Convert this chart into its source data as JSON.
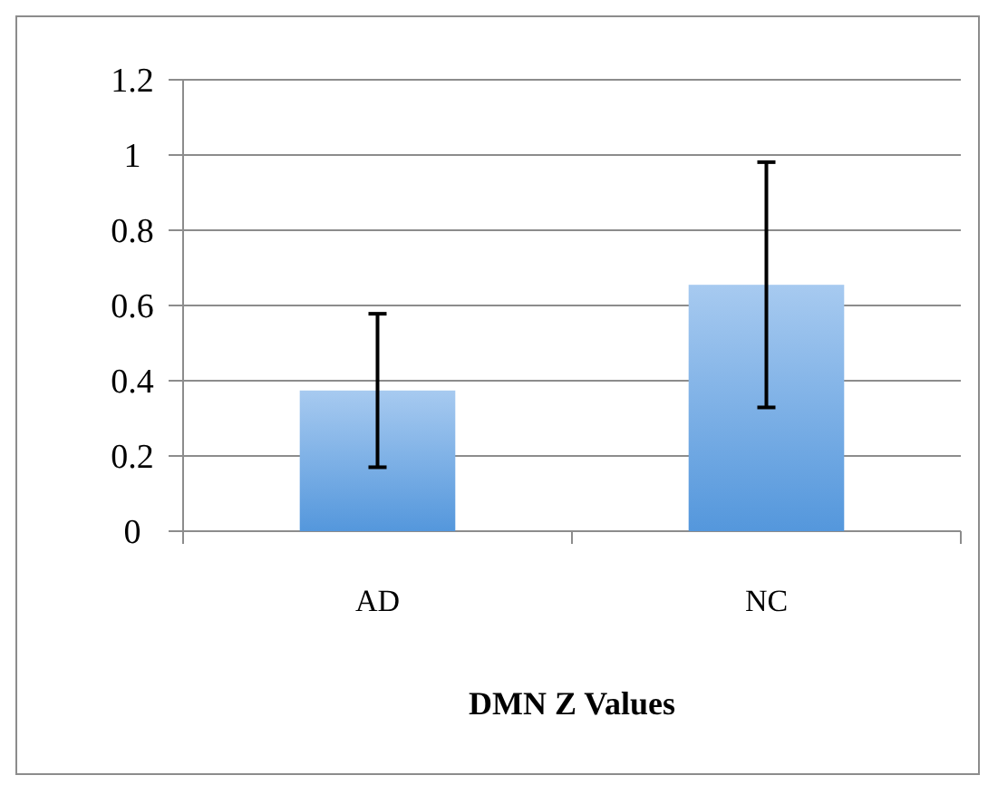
{
  "chart_data": {
    "type": "bar",
    "xlabel": "DMN Z Values",
    "categories": [
      "AD",
      "NC"
    ],
    "values": [
      0.374,
      0.655
    ],
    "errors": [
      0.204,
      0.326
    ],
    "color": "#78aee8",
    "ylim": [
      0,
      1.2
    ],
    "yticks": [
      0,
      0.2,
      0.4,
      0.6,
      0.8,
      1,
      1.2
    ],
    "grid": "y"
  }
}
